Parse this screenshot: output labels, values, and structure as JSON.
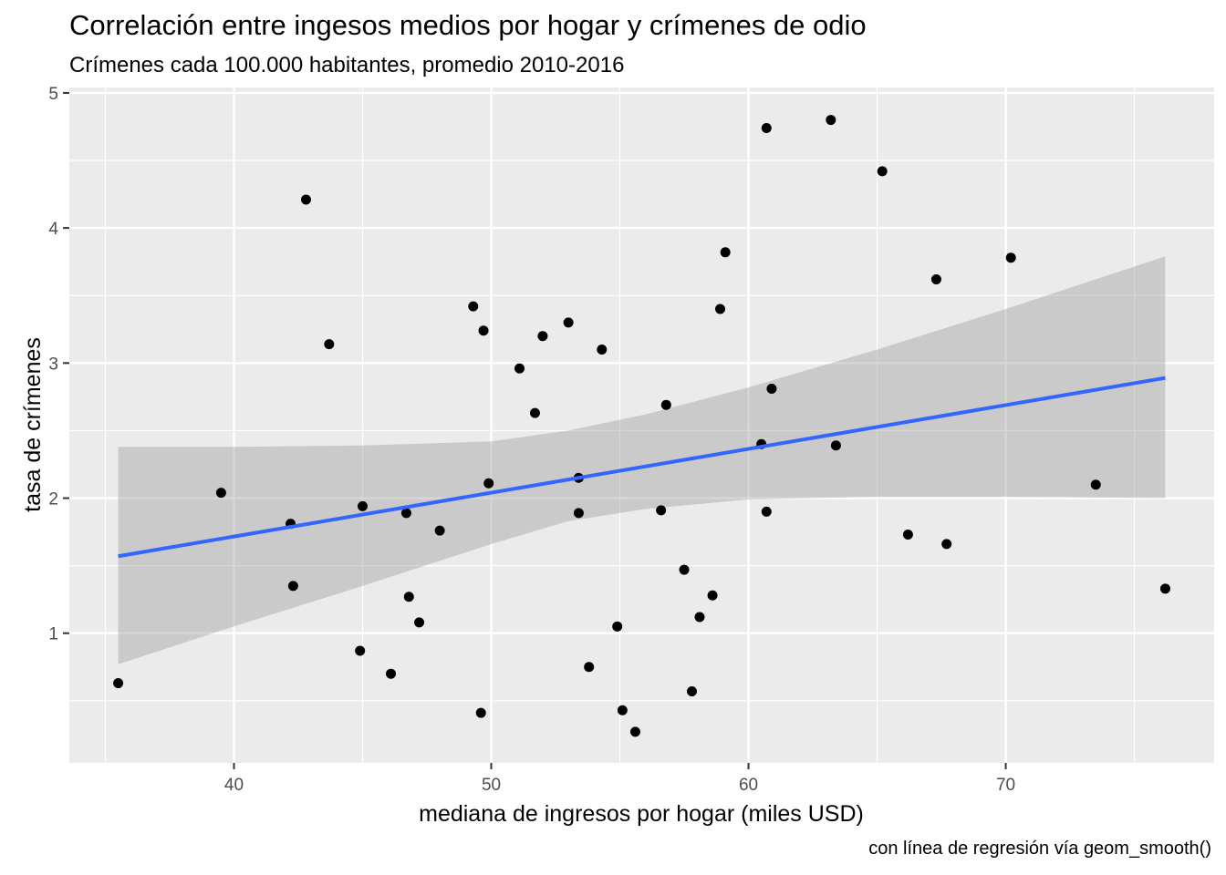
{
  "chart_data": {
    "type": "scatter",
    "title": "Correlación entre ingesos medios por hogar y crímenes de odio",
    "subtitle": "Crímenes cada 100.000 habitantes, promedio 2010-2016",
    "caption": "con línea de regresión vía geom_smooth()",
    "xlabel": "mediana de ingresos por hogar (miles USD)",
    "ylabel": "tasa de crímenes",
    "xlim": [
      33.6,
      78.1
    ],
    "ylim": [
      0.04,
      5.04
    ],
    "x_ticks": [
      40,
      50,
      60,
      70
    ],
    "y_ticks": [
      1,
      2,
      3,
      4,
      5
    ],
    "grid": true,
    "point_color": "#000000",
    "line_color": "#3366FF",
    "band_color": "#999999",
    "panel_color": "#EBEBEB",
    "points": [
      {
        "x": 35.5,
        "y": 0.63
      },
      {
        "x": 39.5,
        "y": 2.04
      },
      {
        "x": 42.2,
        "y": 1.81
      },
      {
        "x": 42.3,
        "y": 1.35
      },
      {
        "x": 42.8,
        "y": 4.21
      },
      {
        "x": 43.7,
        "y": 3.14
      },
      {
        "x": 44.9,
        "y": 0.87
      },
      {
        "x": 45.0,
        "y": 1.94
      },
      {
        "x": 46.1,
        "y": 0.7
      },
      {
        "x": 46.7,
        "y": 1.89
      },
      {
        "x": 46.8,
        "y": 1.27
      },
      {
        "x": 47.2,
        "y": 1.08
      },
      {
        "x": 48.0,
        "y": 1.76
      },
      {
        "x": 49.3,
        "y": 3.42
      },
      {
        "x": 49.6,
        "y": 0.41
      },
      {
        "x": 49.7,
        "y": 3.24
      },
      {
        "x": 49.9,
        "y": 2.11
      },
      {
        "x": 51.1,
        "y": 2.96
      },
      {
        "x": 51.7,
        "y": 2.63
      },
      {
        "x": 52.0,
        "y": 3.2
      },
      {
        "x": 53.0,
        "y": 3.3
      },
      {
        "x": 53.4,
        "y": 2.15
      },
      {
        "x": 53.4,
        "y": 1.89
      },
      {
        "x": 53.8,
        "y": 0.75
      },
      {
        "x": 54.3,
        "y": 3.1
      },
      {
        "x": 54.9,
        "y": 1.05
      },
      {
        "x": 55.1,
        "y": 0.43
      },
      {
        "x": 55.6,
        "y": 0.27
      },
      {
        "x": 56.6,
        "y": 1.91
      },
      {
        "x": 56.8,
        "y": 2.69
      },
      {
        "x": 57.5,
        "y": 1.47
      },
      {
        "x": 57.8,
        "y": 0.57
      },
      {
        "x": 58.1,
        "y": 1.12
      },
      {
        "x": 58.6,
        "y": 1.28
      },
      {
        "x": 58.9,
        "y": 3.4
      },
      {
        "x": 59.1,
        "y": 3.82
      },
      {
        "x": 60.5,
        "y": 2.4
      },
      {
        "x": 60.7,
        "y": 4.74
      },
      {
        "x": 60.7,
        "y": 1.9
      },
      {
        "x": 60.9,
        "y": 2.81
      },
      {
        "x": 63.2,
        "y": 4.8
      },
      {
        "x": 63.4,
        "y": 2.39
      },
      {
        "x": 65.2,
        "y": 4.42
      },
      {
        "x": 66.2,
        "y": 1.73
      },
      {
        "x": 67.3,
        "y": 3.62
      },
      {
        "x": 67.7,
        "y": 1.66
      },
      {
        "x": 70.2,
        "y": 3.78
      },
      {
        "x": 73.5,
        "y": 2.1
      },
      {
        "x": 76.2,
        "y": 1.33
      }
    ],
    "regression_line": [
      {
        "x": 35.5,
        "y": 1.57
      },
      {
        "x": 76.2,
        "y": 2.89
      }
    ],
    "confidence_band": [
      {
        "x": 35.5,
        "lower": 0.77,
        "upper": 2.38
      },
      {
        "x": 40.0,
        "lower": 1.05,
        "upper": 2.38
      },
      {
        "x": 45.0,
        "lower": 1.35,
        "upper": 2.39
      },
      {
        "x": 50.0,
        "lower": 1.66,
        "upper": 2.42
      },
      {
        "x": 53.0,
        "lower": 1.83,
        "upper": 2.5
      },
      {
        "x": 56.0,
        "lower": 1.92,
        "upper": 2.62
      },
      {
        "x": 60.0,
        "lower": 1.99,
        "upper": 2.82
      },
      {
        "x": 65.0,
        "lower": 2.01,
        "upper": 3.1
      },
      {
        "x": 70.0,
        "lower": 2.01,
        "upper": 3.4
      },
      {
        "x": 76.2,
        "lower": 2.0,
        "upper": 3.79
      }
    ]
  }
}
